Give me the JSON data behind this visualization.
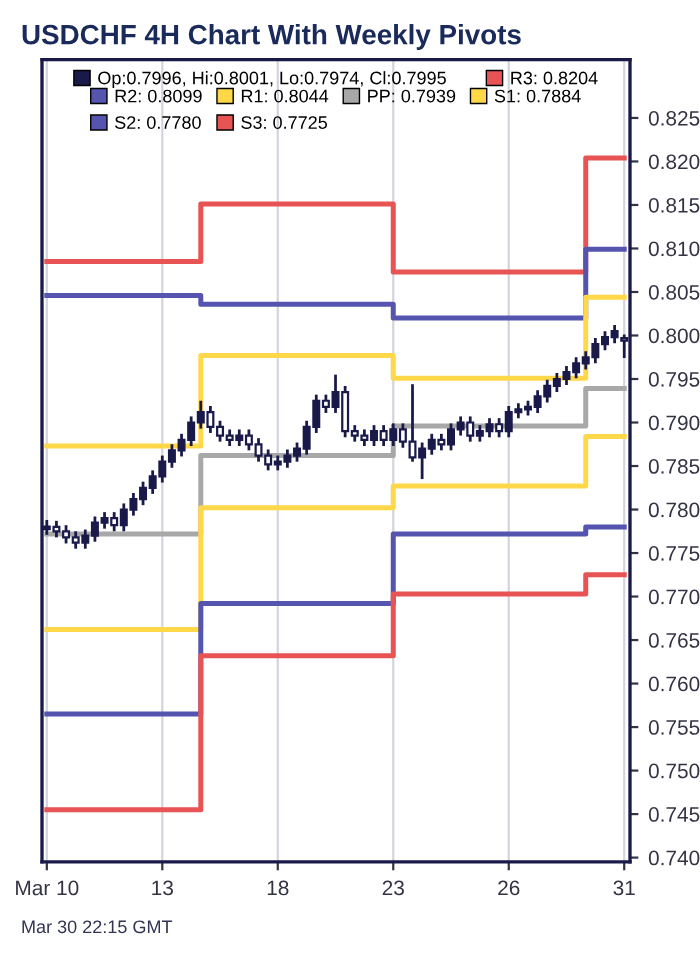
{
  "chart_data": {
    "type": "candlestick",
    "title": "USDCHF 4H Chart With Weekly Pivots",
    "annotations": [
      "Mar 30 22:15 GMT"
    ],
    "categories": [
      "Mar 10",
      null,
      null,
      null,
      null,
      null,
      null,
      null,
      null,
      null,
      null,
      null,
      "13",
      null,
      null,
      null,
      null,
      null,
      null,
      null,
      null,
      null,
      null,
      null,
      "18",
      null,
      null,
      null,
      null,
      null,
      null,
      null,
      null,
      null,
      null,
      null,
      "23",
      null,
      null,
      null,
      null,
      null,
      null,
      null,
      null,
      null,
      null,
      null,
      "26",
      null,
      null,
      null,
      null,
      null,
      null,
      null,
      null,
      null,
      null,
      null,
      "31"
    ],
    "ylim": [
      0.7395,
      0.8317
    ],
    "yticks": [
      {
        "value": 0.74,
        "label": "0.740"
      },
      {
        "value": 0.745,
        "label": "0.745"
      },
      {
        "value": 0.75,
        "label": "0.750"
      },
      {
        "value": 0.755,
        "label": "0.755"
      },
      {
        "value": 0.76,
        "label": "0.760"
      },
      {
        "value": 0.765,
        "label": "0.765"
      },
      {
        "value": 0.77,
        "label": "0.770"
      },
      {
        "value": 0.775,
        "label": "0.775"
      },
      {
        "value": 0.78,
        "label": "0.780"
      },
      {
        "value": 0.785,
        "label": "0.785"
      },
      {
        "value": 0.79,
        "label": "0.790"
      },
      {
        "value": 0.795,
        "label": "0.795"
      },
      {
        "value": 0.8,
        "label": "0.800"
      },
      {
        "value": 0.805,
        "label": "0.805"
      },
      {
        "value": 0.81,
        "label": "0.810"
      },
      {
        "value": 0.815,
        "label": "0.815"
      },
      {
        "value": 0.82,
        "label": "0.820"
      },
      {
        "value": 0.825,
        "label": "0.825"
      }
    ],
    "grid": "x",
    "legend": "top",
    "series": [
      {
        "name": "Op:0.7996, Hi:0.8001, Lo:0.7974, Cl:0.7995",
        "color": "#1a1a4a",
        "ohlc": [
          [
            0.7778,
            0.7788,
            0.7771,
            0.778
          ],
          [
            0.778,
            0.7787,
            0.7768,
            0.7775
          ],
          [
            0.7775,
            0.7782,
            0.7761,
            0.7768
          ],
          [
            0.7768,
            0.7775,
            0.7755,
            0.7762
          ],
          [
            0.7762,
            0.7777,
            0.7755,
            0.777
          ],
          [
            0.777,
            0.7792,
            0.7763,
            0.7785
          ],
          [
            0.7785,
            0.7797,
            0.7778,
            0.779
          ],
          [
            0.779,
            0.7797,
            0.7775,
            0.7782
          ],
          [
            0.7782,
            0.7807,
            0.7775,
            0.78
          ],
          [
            0.78,
            0.7819,
            0.7793,
            0.7812
          ],
          [
            0.7812,
            0.7832,
            0.7805,
            0.7825
          ],
          [
            0.7825,
            0.7845,
            0.7818,
            0.7838
          ],
          [
            0.7838,
            0.7862,
            0.7831,
            0.7855
          ],
          [
            0.7855,
            0.7875,
            0.7848,
            0.7868
          ],
          [
            0.7868,
            0.7887,
            0.7861,
            0.788
          ],
          [
            0.788,
            0.7907,
            0.7873,
            0.79
          ],
          [
            0.79,
            0.7925,
            0.7893,
            0.7912
          ],
          [
            0.7912,
            0.7919,
            0.7888,
            0.7895
          ],
          [
            0.7895,
            0.7902,
            0.7878,
            0.7885
          ],
          [
            0.7885,
            0.7892,
            0.7873,
            0.788
          ],
          [
            0.788,
            0.7892,
            0.7873,
            0.7885
          ],
          [
            0.7885,
            0.7892,
            0.7868,
            0.7875
          ],
          [
            0.7875,
            0.7882,
            0.7855,
            0.7862
          ],
          [
            0.7862,
            0.7869,
            0.7845,
            0.7852
          ],
          [
            0.7852,
            0.7862,
            0.7845,
            0.7855
          ],
          [
            0.7855,
            0.7869,
            0.7848,
            0.7862
          ],
          [
            0.7862,
            0.7877,
            0.7855,
            0.787
          ],
          [
            0.787,
            0.7902,
            0.7863,
            0.7895
          ],
          [
            0.7895,
            0.7932,
            0.7888,
            0.7925
          ],
          [
            0.7925,
            0.7932,
            0.7911,
            0.7918
          ],
          [
            0.7918,
            0.7955,
            0.7911,
            0.7935
          ],
          [
            0.7935,
            0.7942,
            0.7883,
            0.789
          ],
          [
            0.789,
            0.7897,
            0.7878,
            0.7885
          ],
          [
            0.7885,
            0.7892,
            0.7873,
            0.788
          ],
          [
            0.788,
            0.7897,
            0.7873,
            0.789
          ],
          [
            0.789,
            0.7897,
            0.7873,
            0.788
          ],
          [
            0.788,
            0.7899,
            0.7873,
            0.7892
          ],
          [
            0.7892,
            0.7899,
            0.7871,
            0.7878
          ],
          [
            0.7878,
            0.7944,
            0.7855,
            0.786
          ],
          [
            0.786,
            0.7877,
            0.7835,
            0.787
          ],
          [
            0.787,
            0.7887,
            0.7863,
            0.788
          ],
          [
            0.788,
            0.7887,
            0.7868,
            0.7875
          ],
          [
            0.7875,
            0.7899,
            0.7868,
            0.7892
          ],
          [
            0.7892,
            0.7907,
            0.7885,
            0.79
          ],
          [
            0.79,
            0.7907,
            0.7878,
            0.7885
          ],
          [
            0.7885,
            0.7897,
            0.7878,
            0.789
          ],
          [
            0.789,
            0.7905,
            0.7883,
            0.7898
          ],
          [
            0.7898,
            0.7905,
            0.7883,
            0.789
          ],
          [
            0.789,
            0.7919,
            0.7883,
            0.7912
          ],
          [
            0.7912,
            0.7922,
            0.7905,
            0.7915
          ],
          [
            0.7915,
            0.7925,
            0.7908,
            0.7918
          ],
          [
            0.7918,
            0.7937,
            0.7911,
            0.793
          ],
          [
            0.793,
            0.7949,
            0.7923,
            0.7942
          ],
          [
            0.7942,
            0.7957,
            0.7935,
            0.795
          ],
          [
            0.795,
            0.7965,
            0.7943,
            0.7958
          ],
          [
            0.7958,
            0.7975,
            0.7951,
            0.7968
          ],
          [
            0.7968,
            0.7982,
            0.7961,
            0.7975
          ],
          [
            0.7975,
            0.7997,
            0.7968,
            0.799
          ],
          [
            0.799,
            0.8005,
            0.7983,
            0.7998
          ],
          [
            0.7998,
            0.8012,
            0.7991,
            0.8005
          ],
          [
            0.7996,
            0.8001,
            0.7974,
            0.7995
          ]
        ]
      },
      {
        "type": "step",
        "name": "R3: 0.8204",
        "color": "#e85454",
        "values": [
          0.8085,
          0.8085,
          0.8085,
          0.8085,
          0.8085,
          0.8085,
          0.8085,
          0.8085,
          0.8085,
          0.8085,
          0.8085,
          0.8085,
          0.8085,
          0.8085,
          0.8085,
          0.8085,
          0.8151,
          0.8151,
          0.8151,
          0.8151,
          0.8151,
          0.8151,
          0.8151,
          0.8151,
          0.8151,
          0.8151,
          0.8151,
          0.8151,
          0.8151,
          0.8151,
          0.8151,
          0.8151,
          0.8151,
          0.8151,
          0.8151,
          0.8151,
          0.8073,
          0.8073,
          0.8073,
          0.8073,
          0.8073,
          0.8073,
          0.8073,
          0.8073,
          0.8073,
          0.8073,
          0.8073,
          0.8073,
          0.8073,
          0.8073,
          0.8073,
          0.8073,
          0.8073,
          0.8073,
          0.8073,
          0.8073,
          0.8204,
          0.8204,
          0.8204,
          0.8204,
          0.8204
        ]
      },
      {
        "type": "step",
        "name": "R2: 0.8099",
        "color": "#5555b0",
        "values": [
          0.8046,
          0.8046,
          0.8046,
          0.8046,
          0.8046,
          0.8046,
          0.8046,
          0.8046,
          0.8046,
          0.8046,
          0.8046,
          0.8046,
          0.8046,
          0.8046,
          0.8046,
          0.8046,
          0.8036,
          0.8036,
          0.8036,
          0.8036,
          0.8036,
          0.8036,
          0.8036,
          0.8036,
          0.8036,
          0.8036,
          0.8036,
          0.8036,
          0.8036,
          0.8036,
          0.8036,
          0.8036,
          0.8036,
          0.8036,
          0.8036,
          0.8036,
          0.802,
          0.802,
          0.802,
          0.802,
          0.802,
          0.802,
          0.802,
          0.802,
          0.802,
          0.802,
          0.802,
          0.802,
          0.802,
          0.802,
          0.802,
          0.802,
          0.802,
          0.802,
          0.802,
          0.802,
          0.8099,
          0.8099,
          0.8099,
          0.8099,
          0.8099
        ]
      },
      {
        "type": "step",
        "name": "R1: 0.8044",
        "color": "#ffd84a",
        "values": [
          0.7873,
          0.7873,
          0.7873,
          0.7873,
          0.7873,
          0.7873,
          0.7873,
          0.7873,
          0.7873,
          0.7873,
          0.7873,
          0.7873,
          0.7873,
          0.7873,
          0.7873,
          0.7873,
          0.7977,
          0.7977,
          0.7977,
          0.7977,
          0.7977,
          0.7977,
          0.7977,
          0.7977,
          0.7977,
          0.7977,
          0.7977,
          0.7977,
          0.7977,
          0.7977,
          0.7977,
          0.7977,
          0.7977,
          0.7977,
          0.7977,
          0.7977,
          0.7951,
          0.7951,
          0.7951,
          0.7951,
          0.7951,
          0.7951,
          0.7951,
          0.7951,
          0.7951,
          0.7951,
          0.7951,
          0.7951,
          0.7951,
          0.7951,
          0.7951,
          0.7951,
          0.7951,
          0.7951,
          0.7951,
          0.7951,
          0.8044,
          0.8044,
          0.8044,
          0.8044,
          0.8044
        ]
      },
      {
        "type": "step",
        "name": "PP: 0.7939",
        "color": "#a8a8a8",
        "values": [
          0.7772,
          0.7772,
          0.7772,
          0.7772,
          0.7772,
          0.7772,
          0.7772,
          0.7772,
          0.7772,
          0.7772,
          0.7772,
          0.7772,
          0.7772,
          0.7772,
          0.7772,
          0.7772,
          0.7862,
          0.7862,
          0.7862,
          0.7862,
          0.7862,
          0.7862,
          0.7862,
          0.7862,
          0.7862,
          0.7862,
          0.7862,
          0.7862,
          0.7862,
          0.7862,
          0.7862,
          0.7862,
          0.7862,
          0.7862,
          0.7862,
          0.7862,
          0.7896,
          0.7896,
          0.7896,
          0.7896,
          0.7896,
          0.7896,
          0.7896,
          0.7896,
          0.7896,
          0.7896,
          0.7896,
          0.7896,
          0.7896,
          0.7896,
          0.7896,
          0.7896,
          0.7896,
          0.7896,
          0.7896,
          0.7896,
          0.7939,
          0.7939,
          0.7939,
          0.7939,
          0.7939
        ]
      },
      {
        "type": "step",
        "name": "S1: 0.7884",
        "color": "#ffd84a",
        "values": [
          0.7662,
          0.7662,
          0.7662,
          0.7662,
          0.7662,
          0.7662,
          0.7662,
          0.7662,
          0.7662,
          0.7662,
          0.7662,
          0.7662,
          0.7662,
          0.7662,
          0.7662,
          0.7662,
          0.7802,
          0.7802,
          0.7802,
          0.7802,
          0.7802,
          0.7802,
          0.7802,
          0.7802,
          0.7802,
          0.7802,
          0.7802,
          0.7802,
          0.7802,
          0.7802,
          0.7802,
          0.7802,
          0.7802,
          0.7802,
          0.7802,
          0.7802,
          0.7827,
          0.7827,
          0.7827,
          0.7827,
          0.7827,
          0.7827,
          0.7827,
          0.7827,
          0.7827,
          0.7827,
          0.7827,
          0.7827,
          0.7827,
          0.7827,
          0.7827,
          0.7827,
          0.7827,
          0.7827,
          0.7827,
          0.7827,
          0.7884,
          0.7884,
          0.7884,
          0.7884,
          0.7884
        ]
      },
      {
        "type": "step",
        "name": "S2: 0.7780",
        "color": "#5555b0",
        "values": [
          0.7565,
          0.7565,
          0.7565,
          0.7565,
          0.7565,
          0.7565,
          0.7565,
          0.7565,
          0.7565,
          0.7565,
          0.7565,
          0.7565,
          0.7565,
          0.7565,
          0.7565,
          0.7565,
          0.7692,
          0.7692,
          0.7692,
          0.7692,
          0.7692,
          0.7692,
          0.7692,
          0.7692,
          0.7692,
          0.7692,
          0.7692,
          0.7692,
          0.7692,
          0.7692,
          0.7692,
          0.7692,
          0.7692,
          0.7692,
          0.7692,
          0.7692,
          0.7772,
          0.7772,
          0.7772,
          0.7772,
          0.7772,
          0.7772,
          0.7772,
          0.7772,
          0.7772,
          0.7772,
          0.7772,
          0.7772,
          0.7772,
          0.7772,
          0.7772,
          0.7772,
          0.7772,
          0.7772,
          0.7772,
          0.7772,
          0.778,
          0.778,
          0.778,
          0.778,
          0.778
        ]
      },
      {
        "type": "step",
        "name": "S3: 0.7725",
        "color": "#e85454",
        "values": [
          0.7455,
          0.7455,
          0.7455,
          0.7455,
          0.7455,
          0.7455,
          0.7455,
          0.7455,
          0.7455,
          0.7455,
          0.7455,
          0.7455,
          0.7455,
          0.7455,
          0.7455,
          0.7455,
          0.7632,
          0.7632,
          0.7632,
          0.7632,
          0.7632,
          0.7632,
          0.7632,
          0.7632,
          0.7632,
          0.7632,
          0.7632,
          0.7632,
          0.7632,
          0.7632,
          0.7632,
          0.7632,
          0.7632,
          0.7632,
          0.7632,
          0.7632,
          0.7703,
          0.7703,
          0.7703,
          0.7703,
          0.7703,
          0.7703,
          0.7703,
          0.7703,
          0.7703,
          0.7703,
          0.7703,
          0.7703,
          0.7703,
          0.7703,
          0.7703,
          0.7703,
          0.7703,
          0.7703,
          0.7703,
          0.7703,
          0.7725,
          0.7725,
          0.7725,
          0.7725,
          0.7725
        ]
      }
    ]
  }
}
